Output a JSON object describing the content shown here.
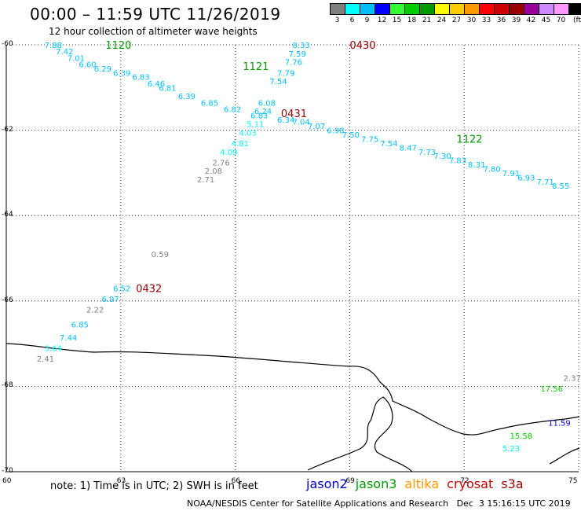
{
  "header": {
    "title": "00:00 – 11:59 UTC 11/26/2019",
    "subtitle": "12 hour collection of altimeter wave heights"
  },
  "color_scale": {
    "unit": "(ft)",
    "bins": [
      {
        "label": "3",
        "color": "#808080"
      },
      {
        "label": "6",
        "color": "#00ffff"
      },
      {
        "label": "9",
        "color": "#00bfff"
      },
      {
        "label": "12",
        "color": "#0000ff"
      },
      {
        "label": "15",
        "color": "#33ff33"
      },
      {
        "label": "18",
        "color": "#00cc00"
      },
      {
        "label": "21",
        "color": "#009900"
      },
      {
        "label": "24",
        "color": "#ffff00"
      },
      {
        "label": "27",
        "color": "#ffcc00"
      },
      {
        "label": "30",
        "color": "#ff9900"
      },
      {
        "label": "33",
        "color": "#ff0000"
      },
      {
        "label": "36",
        "color": "#cc0000"
      },
      {
        "label": "39",
        "color": "#990000"
      },
      {
        "label": "42",
        "color": "#990099"
      },
      {
        "label": "45",
        "color": "#cc88ff"
      },
      {
        "label": "70",
        "color": "#ff99ff"
      },
      {
        "label": "",
        "color": "#000000"
      }
    ]
  },
  "map": {
    "lat_labels": [
      "-60",
      "-62",
      "-64",
      "-66",
      "-68",
      "-70"
    ],
    "lon_labels": [
      "60",
      "63",
      "66",
      "69",
      "72",
      "75"
    ],
    "time_labels": [
      {
        "text": "1120",
        "color": "#009900",
        "lon": 62.6,
        "lat": -60.0
      },
      {
        "text": "1121",
        "color": "#009900",
        "lon": 66.2,
        "lat": -60.5
      },
      {
        "text": "0430",
        "color": "#990000",
        "lon": 69.0,
        "lat": -60.0
      },
      {
        "text": "0431",
        "color": "#990000",
        "lon": 67.2,
        "lat": -61.6
      },
      {
        "text": "1122",
        "color": "#009900",
        "lon": 71.8,
        "lat": -62.2
      },
      {
        "text": "0432",
        "color": "#990000",
        "lon": 63.4,
        "lat": -65.7
      }
    ],
    "observations": [
      {
        "v": "7.88",
        "c": "#00bfff",
        "lon": 61.0,
        "lat": -60.0
      },
      {
        "v": "7.42",
        "c": "#00bfff",
        "lon": 61.3,
        "lat": -60.15
      },
      {
        "v": "7.01",
        "c": "#00bfff",
        "lon": 61.6,
        "lat": -60.3
      },
      {
        "v": "6.60",
        "c": "#00bfff",
        "lon": 61.9,
        "lat": -60.45
      },
      {
        "v": "6.29",
        "c": "#00bfff",
        "lon": 62.3,
        "lat": -60.55
      },
      {
        "v": "6.39",
        "c": "#00bfff",
        "lon": 62.8,
        "lat": -60.65
      },
      {
        "v": "6.83",
        "c": "#00bfff",
        "lon": 63.3,
        "lat": -60.75
      },
      {
        "v": "6.46",
        "c": "#00bfff",
        "lon": 63.7,
        "lat": -60.9
      },
      {
        "v": "6.81",
        "c": "#00bfff",
        "lon": 64.0,
        "lat": -61.0
      },
      {
        "v": "6.39",
        "c": "#00bfff",
        "lon": 64.5,
        "lat": -61.2
      },
      {
        "v": "6.85",
        "c": "#00bfff",
        "lon": 65.1,
        "lat": -61.35
      },
      {
        "v": "6.82",
        "c": "#00bfff",
        "lon": 65.7,
        "lat": -61.5
      },
      {
        "v": "6.83",
        "c": "#00bfff",
        "lon": 66.4,
        "lat": -61.65
      },
      {
        "v": "6.34",
        "c": "#00bfff",
        "lon": 67.1,
        "lat": -61.75
      },
      {
        "v": "7.04",
        "c": "#00bfff",
        "lon": 67.5,
        "lat": -61.8
      },
      {
        "v": "7.07",
        "c": "#00bfff",
        "lon": 67.9,
        "lat": -61.9
      },
      {
        "v": "6.98",
        "c": "#00bfff",
        "lon": 68.4,
        "lat": -62.0
      },
      {
        "v": "7.50",
        "c": "#00bfff",
        "lon": 68.8,
        "lat": -62.1
      },
      {
        "v": "7.75",
        "c": "#00bfff",
        "lon": 69.3,
        "lat": -62.2
      },
      {
        "v": "7.54",
        "c": "#00bfff",
        "lon": 69.8,
        "lat": -62.3
      },
      {
        "v": "8.47",
        "c": "#00bfff",
        "lon": 70.3,
        "lat": -62.4
      },
      {
        "v": "7.73",
        "c": "#00bfff",
        "lon": 70.8,
        "lat": -62.5
      },
      {
        "v": "7.30",
        "c": "#00bfff",
        "lon": 71.2,
        "lat": -62.6
      },
      {
        "v": "7.83",
        "c": "#00bfff",
        "lon": 71.6,
        "lat": -62.7
      },
      {
        "v": "8.31",
        "c": "#00bfff",
        "lon": 72.1,
        "lat": -62.8
      },
      {
        "v": "7.80",
        "c": "#00bfff",
        "lon": 72.5,
        "lat": -62.9
      },
      {
        "v": "7.91",
        "c": "#00bfff",
        "lon": 73.0,
        "lat": -63.0
      },
      {
        "v": "6.93",
        "c": "#00bfff",
        "lon": 73.4,
        "lat": -63.1
      },
      {
        "v": "7.71",
        "c": "#00bfff",
        "lon": 73.9,
        "lat": -63.2
      },
      {
        "v": "8.55",
        "c": "#00bfff",
        "lon": 74.3,
        "lat": -63.3
      },
      {
        "v": "8.33",
        "c": "#00bfff",
        "lon": 67.5,
        "lat": -60.0
      },
      {
        "v": "7.59",
        "c": "#00bfff",
        "lon": 67.4,
        "lat": -60.2
      },
      {
        "v": "7.76",
        "c": "#00bfff",
        "lon": 67.3,
        "lat": -60.4
      },
      {
        "v": "7.79",
        "c": "#00bfff",
        "lon": 67.1,
        "lat": -60.65
      },
      {
        "v": "7.54",
        "c": "#00bfff",
        "lon": 66.9,
        "lat": -60.85
      },
      {
        "v": "6.08",
        "c": "#00bfff",
        "lon": 66.6,
        "lat": -61.35
      },
      {
        "v": "6.24",
        "c": "#00bfff",
        "lon": 66.5,
        "lat": -61.55
      },
      {
        "v": "5.11",
        "c": "#00ffff",
        "lon": 66.3,
        "lat": -61.85
      },
      {
        "v": "4.03",
        "c": "#00ffff",
        "lon": 66.1,
        "lat": -62.05
      },
      {
        "v": "4.81",
        "c": "#00ffff",
        "lon": 65.9,
        "lat": -62.3
      },
      {
        "v": "4.09",
        "c": "#00ffff",
        "lon": 65.6,
        "lat": -62.5
      },
      {
        "v": "2.76",
        "c": "#808080",
        "lon": 65.4,
        "lat": -62.75
      },
      {
        "v": "2.08",
        "c": "#808080",
        "lon": 65.2,
        "lat": -62.95
      },
      {
        "v": "2.71",
        "c": "#808080",
        "lon": 65.0,
        "lat": -63.15
      },
      {
        "v": "0.59",
        "c": "#808080",
        "lon": 63.8,
        "lat": -64.9
      },
      {
        "v": "6.52",
        "c": "#00bfff",
        "lon": 62.8,
        "lat": -65.7
      },
      {
        "v": "6.97",
        "c": "#00bfff",
        "lon": 62.5,
        "lat": -65.95
      },
      {
        "v": "2.22",
        "c": "#808080",
        "lon": 62.1,
        "lat": -66.2
      },
      {
        "v": "6.85",
        "c": "#00bfff",
        "lon": 61.7,
        "lat": -66.55
      },
      {
        "v": "7.44",
        "c": "#00bfff",
        "lon": 61.4,
        "lat": -66.85
      },
      {
        "v": "3.64",
        "c": "#00ffff",
        "lon": 61.0,
        "lat": -67.1
      },
      {
        "v": "2.41",
        "c": "#808080",
        "lon": 60.8,
        "lat": -67.35
      },
      {
        "v": "2.37",
        "c": "#808080",
        "lon": 74.6,
        "lat": -67.8
      },
      {
        "v": "17.56",
        "c": "#00cc00",
        "lon": 74.0,
        "lat": -68.05
      },
      {
        "v": "11.59",
        "c": "#0000ff",
        "lon": 74.2,
        "lat": -68.85
      },
      {
        "v": "15.58",
        "c": "#00cc00",
        "lon": 73.2,
        "lat": -69.15
      },
      {
        "v": "5.23",
        "c": "#00ffff",
        "lon": 73.0,
        "lat": -69.45
      }
    ]
  },
  "footer": {
    "note": "note: 1) Time is in UTC; 2) SWH is in feet",
    "satellites": [
      {
        "name": "jason2",
        "color": "#0000cc"
      },
      {
        "name": "jason3",
        "color": "#009900"
      },
      {
        "name": "altika",
        "color": "#ff9900"
      },
      {
        "name": "cryosat",
        "color": "#cc0000"
      },
      {
        "name": "s3a",
        "color": "#990000"
      }
    ],
    "credit": "NOAA/NESDIS Center for Satellite Applications and Research   Dec  3 15:16:15 UTC 2019"
  }
}
